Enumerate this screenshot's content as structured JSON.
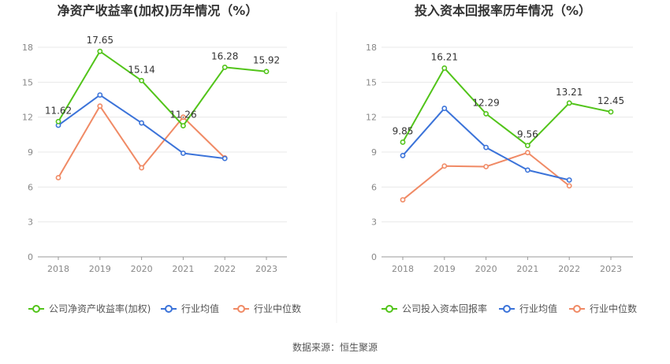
{
  "source_text": "数据来源：恒生聚源",
  "colors": {
    "company": "#52c41a",
    "avg": "#3b73d9",
    "median": "#f08a65",
    "axis": "#999999",
    "grid": "#e8e8e8",
    "title": "#333333",
    "label": "#333333",
    "tick": "#888888",
    "legend_text": "#555555"
  },
  "chart_data": [
    {
      "type": "line",
      "title": "净资产收益率(加权)历年情况（%）",
      "xlabel": "",
      "ylabel": "",
      "categories": [
        "2018",
        "2019",
        "2020",
        "2021",
        "2022",
        "2023"
      ],
      "ylim": [
        0,
        18
      ],
      "yticks": [
        "0",
        "3",
        "6",
        "9",
        "12",
        "15",
        "18"
      ],
      "grid": true,
      "legend_position": "bottom",
      "series": [
        {
          "name": "公司净资产收益率(加权)",
          "color_key": "company",
          "values": [
            11.62,
            17.65,
            15.14,
            11.26,
            16.28,
            15.92
          ],
          "labels": [
            "11.62",
            "17.65",
            "15.14",
            "11.26",
            "16.28",
            "15.92"
          ]
        },
        {
          "name": "行业均值",
          "color_key": "avg",
          "values": [
            11.3,
            13.9,
            11.5,
            8.9,
            8.45,
            null
          ]
        },
        {
          "name": "行业中位数",
          "color_key": "median",
          "values": [
            6.8,
            12.95,
            7.65,
            12.0,
            8.5,
            null
          ]
        }
      ]
    },
    {
      "type": "line",
      "title": "投入资本回报率历年情况（%）",
      "xlabel": "",
      "ylabel": "",
      "categories": [
        "2018",
        "2019",
        "2020",
        "2021",
        "2022",
        "2023"
      ],
      "ylim": [
        0,
        18
      ],
      "yticks": [
        "0",
        "3",
        "6",
        "9",
        "12",
        "15",
        "18"
      ],
      "grid": true,
      "legend_position": "bottom",
      "series": [
        {
          "name": "公司投入资本回报率",
          "color_key": "company",
          "values": [
            9.85,
            16.21,
            12.29,
            9.56,
            13.21,
            12.45
          ],
          "labels": [
            "9.85",
            "16.21",
            "12.29",
            "9.56",
            "13.21",
            "12.45"
          ]
        },
        {
          "name": "行业均值",
          "color_key": "avg",
          "values": [
            8.7,
            12.75,
            9.4,
            7.45,
            6.6,
            null
          ]
        },
        {
          "name": "行业中位数",
          "color_key": "median",
          "values": [
            4.9,
            7.8,
            7.75,
            8.95,
            6.1,
            null
          ]
        }
      ]
    }
  ]
}
